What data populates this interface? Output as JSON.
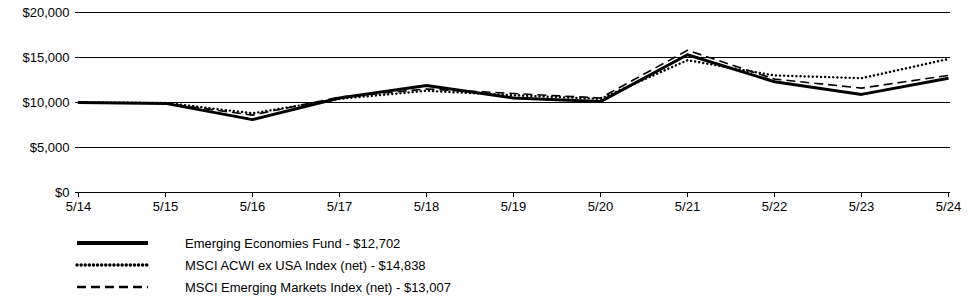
{
  "chart_data": {
    "type": "line",
    "x": [
      "5/14",
      "5/15",
      "5/16",
      "5/17",
      "5/18",
      "5/19",
      "5/20",
      "5/21",
      "5/22",
      "5/23",
      "5/24"
    ],
    "ylim": [
      0,
      20000
    ],
    "yticks": [
      {
        "value": 0,
        "label": "$0"
      },
      {
        "value": 5000,
        "label": "$5,000"
      },
      {
        "value": 10000,
        "label": "$10,000"
      },
      {
        "value": 15000,
        "label": "$15,000"
      },
      {
        "value": 20000,
        "label": "$20,000"
      }
    ],
    "grid": true,
    "legend": "bottom-left",
    "series": [
      {
        "name": "Emerging Economies Fund - $12,702",
        "color": "#000000",
        "line_style": "solid",
        "values": [
          10000,
          9900,
          8100,
          10500,
          11900,
          10500,
          10100,
          15300,
          12300,
          10900,
          12702
        ]
      },
      {
        "name": "MSCI ACWI ex USA Index (net) - $14,838",
        "color": "#000000",
        "line_style": "dotted",
        "values": [
          10000,
          9950,
          8800,
          10400,
          11300,
          10800,
          10400,
          14700,
          13000,
          12700,
          14838
        ]
      },
      {
        "name": "MSCI Emerging Markets Index (net) - $13,007",
        "color": "#000000",
        "line_style": "dashed",
        "values": [
          10000,
          9900,
          8600,
          10600,
          11500,
          11000,
          10500,
          15800,
          12600,
          11600,
          13007
        ]
      }
    ]
  }
}
